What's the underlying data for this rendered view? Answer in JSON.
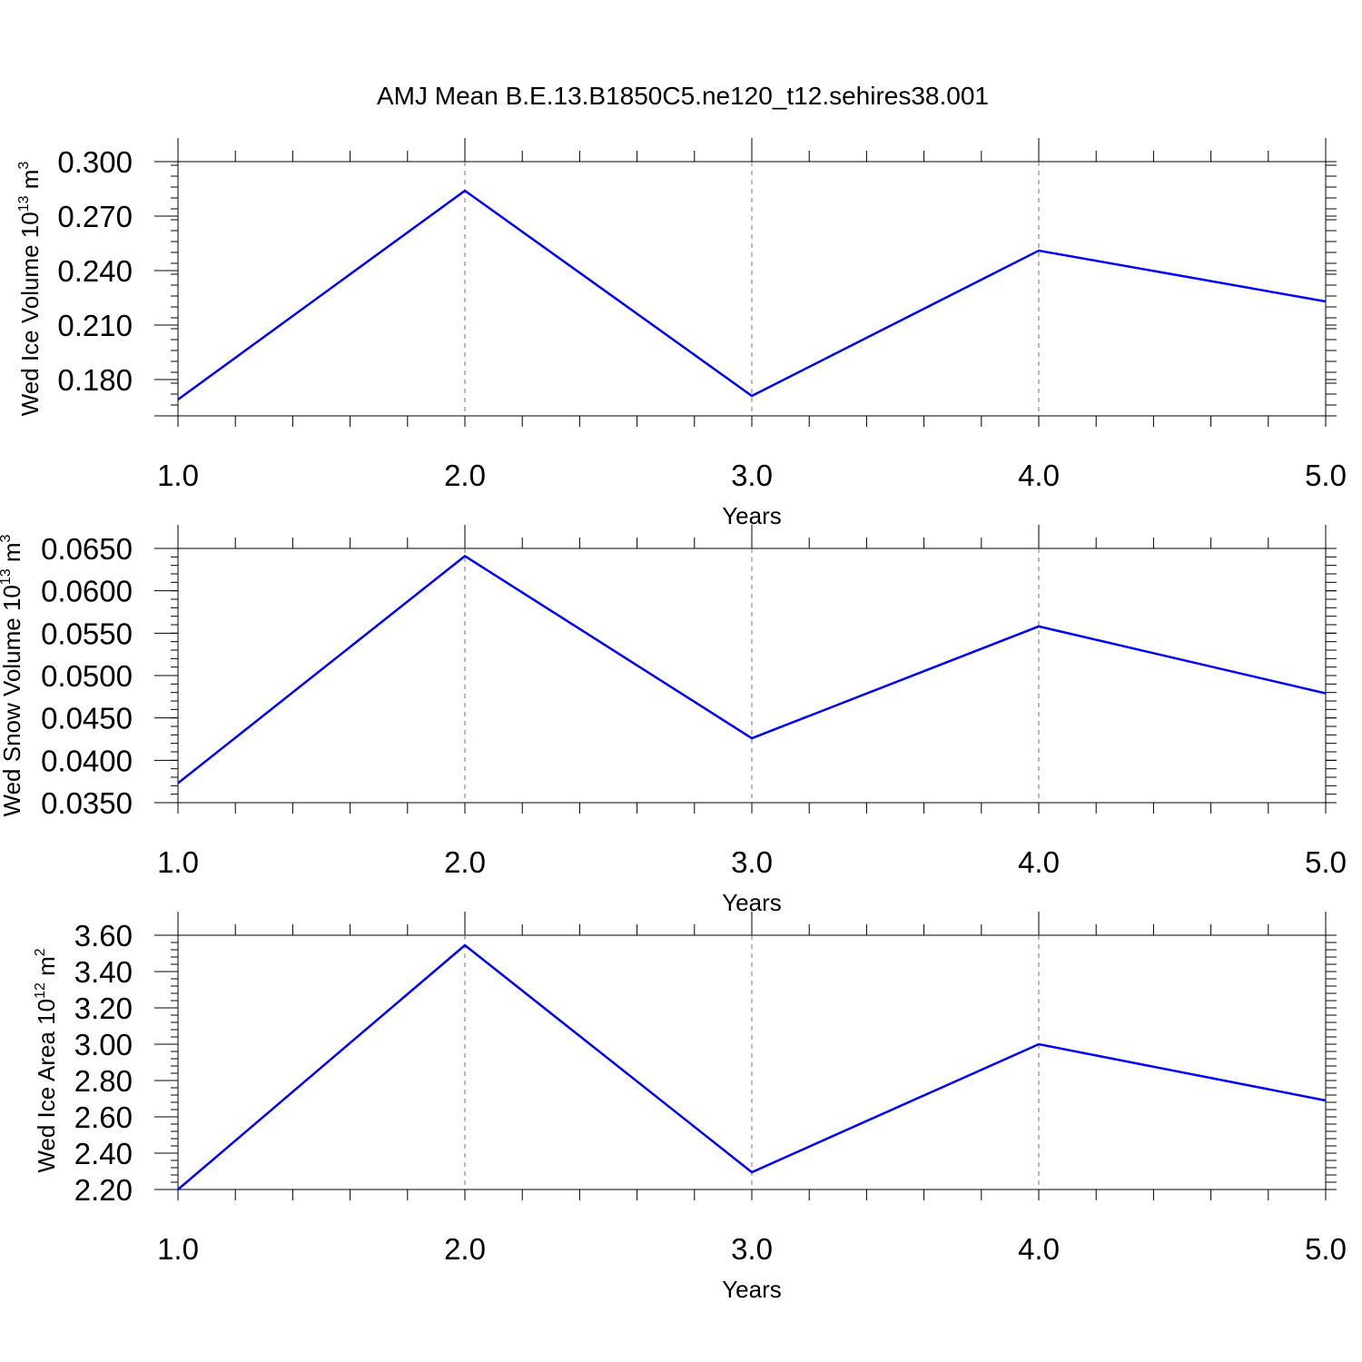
{
  "title": "AMJ Mean B.E.13.B1850C5.ne120_t12.sehires38.001",
  "chart_data": [
    {
      "type": "line",
      "xlabel": "Years",
      "ylabel": {
        "text": "Wed Ice Volume 10",
        "exp": "13",
        "unit": " m",
        "unit_exp": "3"
      },
      "x": [
        1.0,
        2.0,
        3.0,
        4.0,
        5.0
      ],
      "series": [
        {
          "values": [
            0.169,
            0.284,
            0.171,
            0.251,
            0.223
          ],
          "color": "#0000ff"
        }
      ],
      "xlim": [
        1.0,
        5.0
      ],
      "ylim": [
        0.16,
        0.3
      ],
      "yticks": [
        0.18,
        0.21,
        0.24,
        0.27,
        0.3
      ],
      "ytick_labels": [
        "0.180",
        "0.210",
        "0.240",
        "0.270",
        "0.300"
      ],
      "xticks": [
        1.0,
        2.0,
        3.0,
        4.0,
        5.0
      ],
      "xtick_labels": [
        "1.0",
        "2.0",
        "3.0",
        "4.0",
        "5.0"
      ],
      "grid": "vertical dashed"
    },
    {
      "type": "line",
      "xlabel": "Years",
      "ylabel": {
        "text": "Wed Snow Volume 10",
        "exp": "13",
        "unit": " m",
        "unit_exp": "3"
      },
      "x": [
        1.0,
        2.0,
        3.0,
        4.0,
        5.0
      ],
      "series": [
        {
          "values": [
            0.0373,
            0.0641,
            0.0426,
            0.0558,
            0.0479
          ],
          "color": "#0000ff"
        }
      ],
      "xlim": [
        1.0,
        5.0
      ],
      "ylim": [
        0.035,
        0.065
      ],
      "yticks": [
        0.035,
        0.04,
        0.045,
        0.05,
        0.055,
        0.06,
        0.065
      ],
      "ytick_labels": [
        "0.0350",
        "0.0400",
        "0.0450",
        "0.0500",
        "0.0550",
        "0.0600",
        "0.0650"
      ],
      "xticks": [
        1.0,
        2.0,
        3.0,
        4.0,
        5.0
      ],
      "xtick_labels": [
        "1.0",
        "2.0",
        "3.0",
        "4.0",
        "5.0"
      ],
      "grid": "vertical dashed"
    },
    {
      "type": "line",
      "xlabel": "Years",
      "ylabel": {
        "text": "Wed Ice Area 10",
        "exp": "12",
        "unit": " m",
        "unit_exp": "2"
      },
      "x": [
        1.0,
        2.0,
        3.0,
        4.0,
        5.0
      ],
      "series": [
        {
          "values": [
            2.2,
            3.545,
            2.295,
            3.0,
            2.69
          ],
          "color": "#0000ff"
        }
      ],
      "xlim": [
        1.0,
        5.0
      ],
      "ylim": [
        2.2,
        3.6
      ],
      "yticks": [
        2.2,
        2.4,
        2.6,
        2.8,
        3.0,
        3.2,
        3.4,
        3.6
      ],
      "ytick_labels": [
        "2.20",
        "2.40",
        "2.60",
        "2.80",
        "3.00",
        "3.20",
        "3.40",
        "3.60"
      ],
      "xticks": [
        1.0,
        2.0,
        3.0,
        4.0,
        5.0
      ],
      "xtick_labels": [
        "1.0",
        "2.0",
        "3.0",
        "4.0",
        "5.0"
      ],
      "grid": "vertical dashed"
    }
  ]
}
